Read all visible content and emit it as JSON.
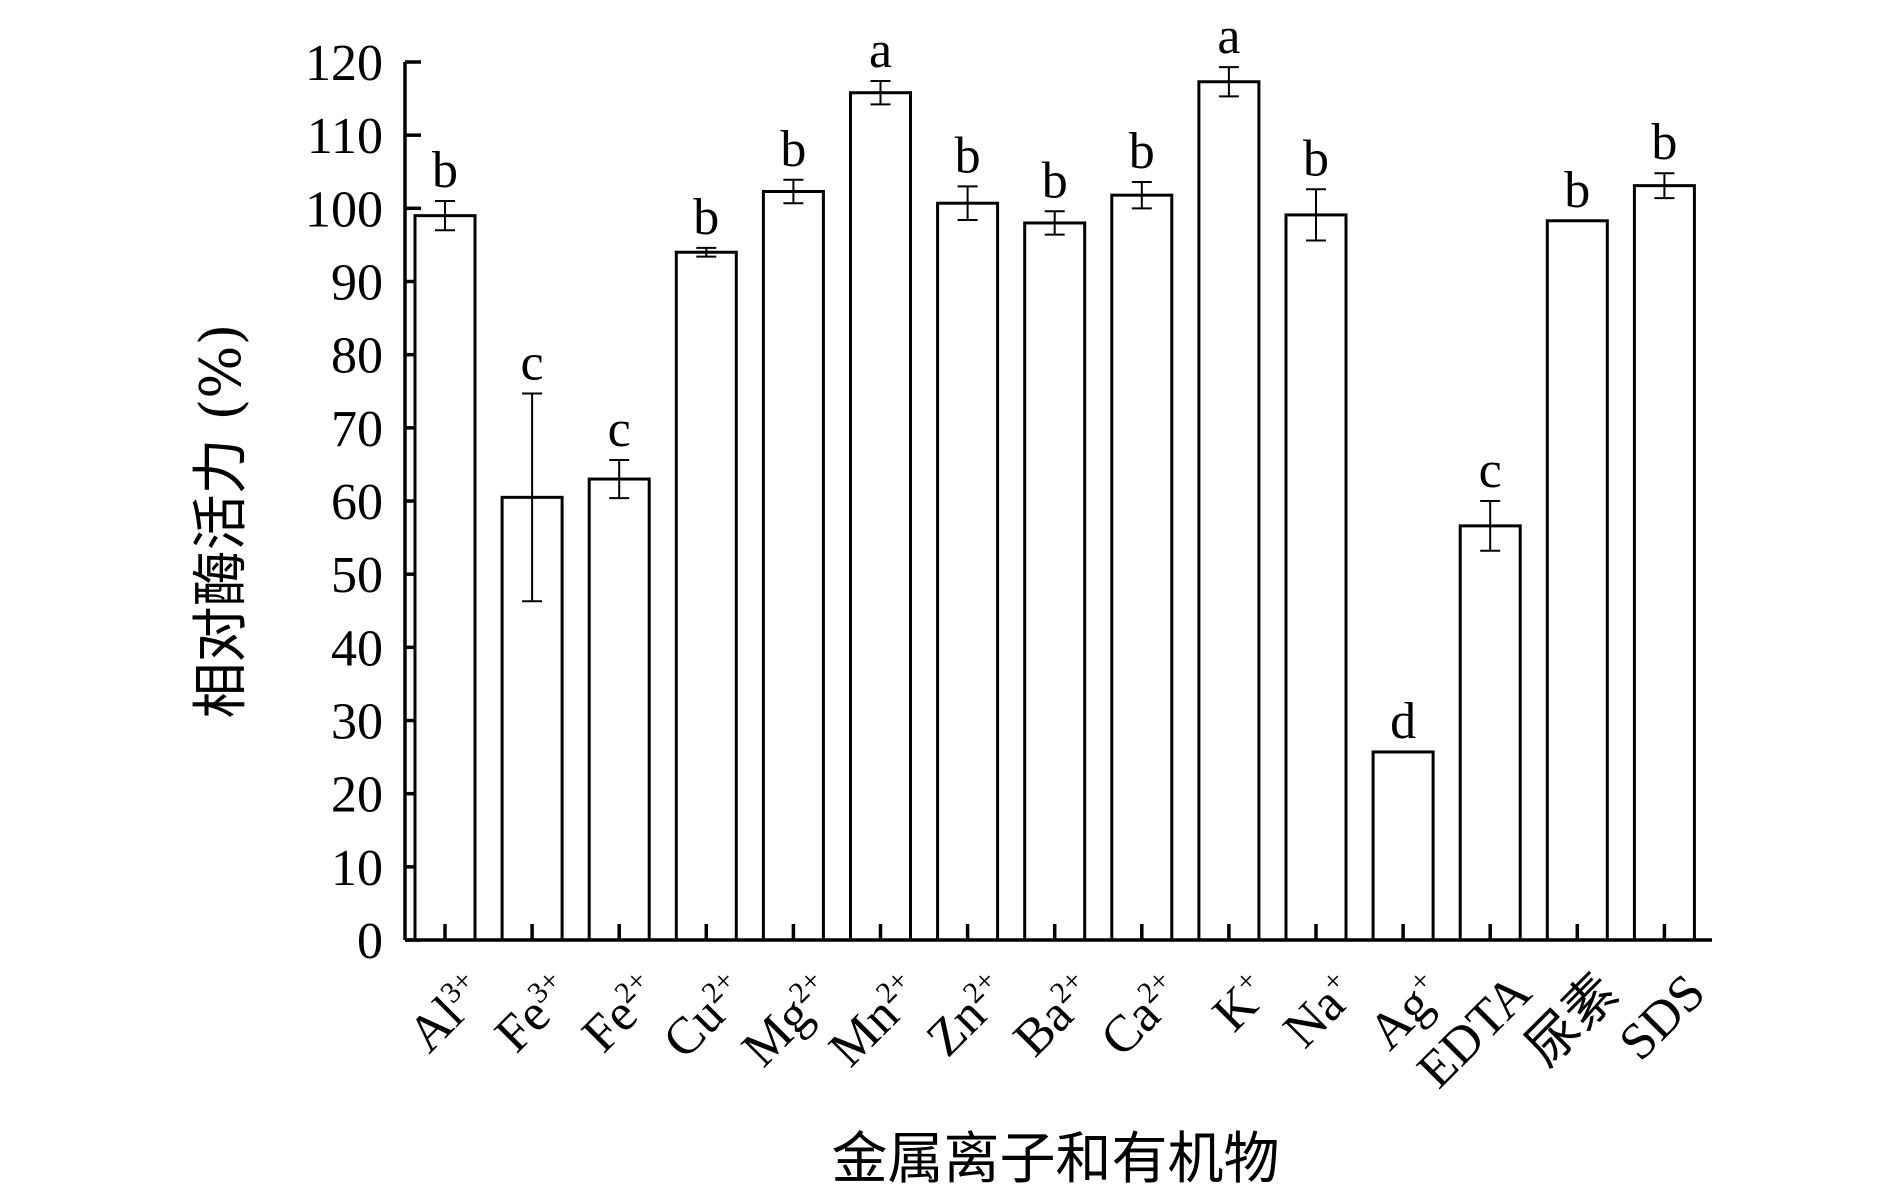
{
  "chart_data": {
    "type": "bar",
    "title": "",
    "xlabel": "金属离子和有机物",
    "ylabel": "相对酶活力 (%)",
    "ylim": [
      0,
      120
    ],
    "yticks": [
      0,
      10,
      20,
      30,
      40,
      50,
      60,
      70,
      80,
      90,
      100,
      110,
      120
    ],
    "categories": [
      {
        "base": "Al",
        "sup": "3+"
      },
      {
        "base": "Fe",
        "sup": "3+"
      },
      {
        "base": "Fe",
        "sup": "2+"
      },
      {
        "base": "Cu",
        "sup": "2+"
      },
      {
        "base": "Mg",
        "sup": "2+"
      },
      {
        "base": "Mn",
        "sup": "2+"
      },
      {
        "base": "Zn",
        "sup": "2+"
      },
      {
        "base": "Ba",
        "sup": "2+"
      },
      {
        "base": "Ca",
        "sup": "2+"
      },
      {
        "base": "K",
        "sup": "+"
      },
      {
        "base": "Na",
        "sup": "+"
      },
      {
        "base": "Ag",
        "sup": "+"
      },
      {
        "base": "EDTA",
        "sup": ""
      },
      {
        "base": "尿素",
        "sup": ""
      },
      {
        "base": "SDS",
        "sup": ""
      }
    ],
    "values": [
      99.0,
      60.5,
      63.0,
      94.0,
      102.3,
      115.8,
      100.7,
      98.0,
      101.8,
      117.3,
      99.1,
      25.7,
      56.6,
      98.3,
      103.1
    ],
    "errors": [
      2.0,
      14.2,
      2.6,
      0.6,
      1.6,
      1.6,
      2.3,
      1.6,
      1.8,
      2.0,
      3.5,
      0.0,
      3.4,
      0.0,
      1.7
    ],
    "significance": [
      "b",
      "c",
      "c",
      "b",
      "b",
      "a",
      "b",
      "b",
      "b",
      "a",
      "b",
      "d",
      "c",
      "b",
      "b"
    ]
  }
}
